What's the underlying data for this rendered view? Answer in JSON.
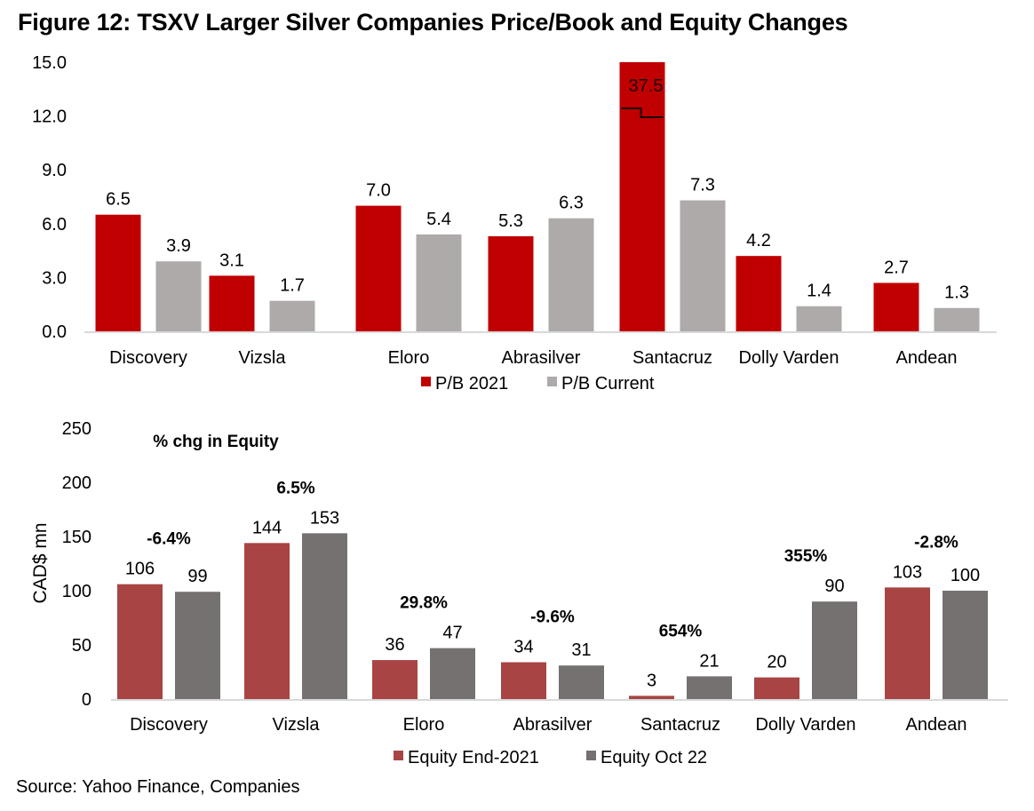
{
  "title": "Figure 12: TSXV Larger Silver Companies Price/Book and Equity Changes",
  "source": "Source: Yahoo Finance, Companies",
  "colors": {
    "pb2021": "#c00000",
    "pbCurrent": "#aeaaaa",
    "equity2021": "#a84444",
    "equityOct22": "#767171",
    "axis": "#d9d9d9"
  },
  "chart_data": [
    {
      "type": "bar",
      "title": "",
      "xlabel": "",
      "ylabel": "",
      "ylim": [
        0,
        15
      ],
      "yticks": [
        "0.0",
        "3.0",
        "6.0",
        "9.0",
        "12.0",
        "15.0"
      ],
      "ytick_values": [
        0,
        3,
        6,
        9,
        12,
        15
      ],
      "grid": false,
      "legend": "bottom",
      "categories": [
        "Discovery",
        "Vizsla",
        "Eloro",
        "Abrasilver",
        "Santacruz",
        "Dolly Varden",
        "Andean"
      ],
      "series": [
        {
          "name": "P/B 2021",
          "color_key": "pb2021",
          "values": [
            6.5,
            3.1,
            7.0,
            5.3,
            37.5,
            4.2,
            2.7
          ],
          "labels": [
            "6.5",
            "3.1",
            "7.0",
            "5.3",
            "37.5",
            "4.2",
            "2.7"
          ]
        },
        {
          "name": "P/B Current",
          "color_key": "pbCurrent",
          "values": [
            3.9,
            1.7,
            5.4,
            6.3,
            7.3,
            1.4,
            1.3
          ],
          "labels": [
            "3.9",
            "1.7",
            "5.4",
            "6.3",
            "7.3",
            "1.4",
            "1.3"
          ]
        }
      ],
      "annotations": [
        {
          "note": "Santacruz P/B 2021 bar truncated at axis max with break marker; label 37.5 drawn inside bar"
        }
      ]
    },
    {
      "type": "bar",
      "title": "% chg in Equity",
      "xlabel": "",
      "ylabel": "CAD$ mn",
      "ylim": [
        0,
        250
      ],
      "yticks": [
        "0",
        "50",
        "100",
        "150",
        "200",
        "250"
      ],
      "ytick_values": [
        0,
        50,
        100,
        150,
        200,
        250
      ],
      "grid": false,
      "legend": "bottom",
      "categories": [
        "Discovery",
        "Vizsla",
        "Eloro",
        "Abrasilver",
        "Santacruz",
        "Dolly Varden",
        "Andean"
      ],
      "series": [
        {
          "name": "Equity End-2021",
          "color_key": "equity2021",
          "values": [
            106,
            144,
            36,
            34,
            3,
            20,
            103
          ],
          "labels": [
            "106",
            "144",
            "36",
            "34",
            "3",
            "20",
            "103"
          ]
        },
        {
          "name": "Equity Oct 22",
          "color_key": "equityOct22",
          "values": [
            99,
            153,
            47,
            31,
            21,
            90,
            100
          ],
          "labels": [
            "99",
            "153",
            "47",
            "31",
            "21",
            "90",
            "100"
          ]
        }
      ],
      "pct_change_labels": [
        "-6.4%",
        "6.5%",
        "29.8%",
        "-9.6%",
        "654%",
        "355%",
        "-2.8%"
      ]
    }
  ]
}
